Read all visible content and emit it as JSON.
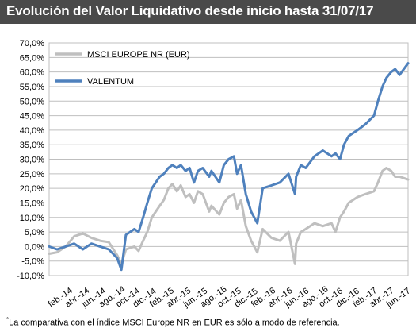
{
  "page": {
    "title": "Evolución del Valor Liquidativo desde inicio hasta 31/07/17",
    "footnote_mark": "*",
    "footnote": "La comparativa con el índice MSCI Europe NR en EUR es sólo a modo de referencia."
  },
  "chart_data": {
    "type": "line",
    "title": "Evolución del Valor Liquidativo desde inicio hasta 31/07/17",
    "xlabel": "",
    "ylabel": "",
    "ylim": [
      -10,
      70
    ],
    "yticks": [
      -10,
      -5,
      0,
      5,
      10,
      15,
      20,
      25,
      30,
      35,
      40,
      45,
      50,
      55,
      60,
      65,
      70
    ],
    "ytick_labels": [
      "-10,0%",
      "-5,0%",
      "0,0%",
      "5,0%",
      "10,0%",
      "15,0%",
      "20,0%",
      "25,0%",
      "30,0%",
      "35,0%",
      "40,0%",
      "45,0%",
      "50,0%",
      "55,0%",
      "60,0%",
      "65,0%",
      "70,0%"
    ],
    "x_range": [
      "2014-02-01",
      "2017-07-31"
    ],
    "xtick_labels": [
      "feb.-14",
      "abr.-14",
      "jun.-14",
      "ago.-14",
      "oct.-14",
      "dic.-14",
      "feb.-15",
      "abr.-15",
      "jun.-15",
      "ago.-15",
      "oct.-15",
      "dic.-15",
      "feb.-16",
      "abr.-16",
      "jun.-16",
      "ago.-16",
      "oct.-16",
      "dic.-16",
      "feb.-17",
      "abr.-17",
      "jun.-17"
    ],
    "grid": true,
    "legend_position": "top-left",
    "series": [
      {
        "name": "MSCI EUROPE NR (EUR)",
        "color": "#bfbfbf",
        "x": [
          "2014-02-01",
          "2014-03-01",
          "2014-04-01",
          "2014-05-01",
          "2014-06-01",
          "2014-07-01",
          "2014-08-01",
          "2014-09-01",
          "2014-10-01",
          "2014-10-16",
          "2014-11-01",
          "2014-12-01",
          "2014-12-16",
          "2015-01-01",
          "2015-01-16",
          "2015-02-01",
          "2015-03-01",
          "2015-03-16",
          "2015-04-01",
          "2015-04-15",
          "2015-05-01",
          "2015-05-15",
          "2015-06-01",
          "2015-06-15",
          "2015-07-01",
          "2015-07-15",
          "2015-08-01",
          "2015-08-24",
          "2015-09-01",
          "2015-09-29",
          "2015-10-15",
          "2015-11-01",
          "2015-11-20",
          "2015-12-01",
          "2015-12-15",
          "2016-01-01",
          "2016-01-20",
          "2016-02-11",
          "2016-03-01",
          "2016-04-01",
          "2016-05-01",
          "2016-06-01",
          "2016-06-24",
          "2016-06-28",
          "2016-07-15",
          "2016-08-01",
          "2016-09-01",
          "2016-10-01",
          "2016-11-01",
          "2016-11-15",
          "2016-12-01",
          "2016-12-15",
          "2017-01-01",
          "2017-02-01",
          "2017-03-01",
          "2017-04-01",
          "2017-04-15",
          "2017-05-01",
          "2017-05-15",
          "2017-06-01",
          "2017-06-15",
          "2017-07-01",
          "2017-07-31"
        ],
        "values": [
          -2.5,
          -2,
          0,
          3.5,
          4.5,
          3,
          2,
          1.5,
          -3,
          -6,
          -1,
          0,
          -1.5,
          2,
          5,
          10,
          14,
          16,
          20,
          21.5,
          19,
          21,
          17,
          18,
          15,
          19,
          18,
          12,
          14,
          11,
          15,
          17,
          18,
          13,
          16,
          7,
          2,
          -2,
          6,
          3,
          2,
          5,
          -6,
          1,
          5,
          6,
          8,
          7,
          8,
          5,
          10,
          12,
          15,
          17,
          18,
          19,
          22,
          26,
          27,
          26,
          24,
          24,
          23
        ]
      },
      {
        "name": "VALENTUM",
        "color": "#4f81bd",
        "x": [
          "2014-02-01",
          "2014-03-01",
          "2014-04-01",
          "2014-05-01",
          "2014-06-01",
          "2014-07-01",
          "2014-08-01",
          "2014-09-01",
          "2014-10-01",
          "2014-10-16",
          "2014-11-01",
          "2014-12-01",
          "2014-12-16",
          "2015-01-01",
          "2015-01-16",
          "2015-02-01",
          "2015-03-01",
          "2015-03-16",
          "2015-04-01",
          "2015-04-15",
          "2015-05-01",
          "2015-05-15",
          "2015-06-01",
          "2015-06-15",
          "2015-07-01",
          "2015-07-15",
          "2015-08-01",
          "2015-08-24",
          "2015-09-01",
          "2015-09-29",
          "2015-10-15",
          "2015-11-01",
          "2015-11-20",
          "2015-12-01",
          "2015-12-15",
          "2016-01-01",
          "2016-01-20",
          "2016-02-11",
          "2016-03-01",
          "2016-04-01",
          "2016-05-01",
          "2016-06-01",
          "2016-06-24",
          "2016-06-28",
          "2016-07-15",
          "2016-08-01",
          "2016-09-01",
          "2016-10-01",
          "2016-11-01",
          "2016-11-15",
          "2016-12-01",
          "2016-12-15",
          "2017-01-01",
          "2017-02-01",
          "2017-03-01",
          "2017-04-01",
          "2017-04-15",
          "2017-05-01",
          "2017-05-15",
          "2017-06-01",
          "2017-06-15",
          "2017-07-01",
          "2017-07-31"
        ],
        "values": [
          0,
          -1,
          0,
          1,
          -1,
          1,
          0,
          -1,
          -4,
          -8,
          4,
          6,
          5,
          10,
          15,
          20,
          24,
          25,
          27,
          28,
          27,
          28,
          26,
          27,
          22,
          26,
          27,
          24,
          26,
          22,
          28,
          30,
          31,
          25,
          28,
          18,
          12,
          8,
          20,
          21,
          22,
          25,
          18,
          24,
          28,
          27,
          31,
          33,
          31,
          32,
          30,
          35,
          38,
          40,
          42,
          45,
          50,
          55,
          58,
          60,
          61,
          59,
          63
        ]
      }
    ]
  }
}
